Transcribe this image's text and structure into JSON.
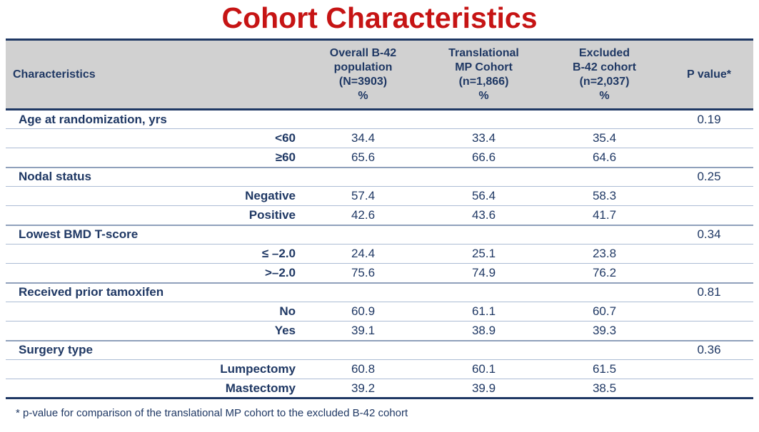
{
  "title": "Cohort Characteristics",
  "colors": {
    "title_red": "#c61414",
    "navy_text": "#1f3864",
    "header_gray": "#d1d1d1",
    "row_line_blue": "#acbcd4"
  },
  "table": {
    "headers": {
      "characteristics": "Characteristics",
      "overall": "Overall B-42\npopulation\n(N=3903)\n%",
      "translational": "Translational\nMP Cohort\n(n=1,866)\n%",
      "excluded": "Excluded\nB-42 cohort\n(n=2,037)\n%",
      "pvalue": "P value*"
    },
    "groups": [
      {
        "label": "Age at randomization, yrs",
        "p": "0.19",
        "rows": [
          {
            "label": "<60",
            "values": [
              "34.4",
              "33.4",
              "35.4"
            ]
          },
          {
            "label": "≥60",
            "values": [
              "65.6",
              "66.6",
              "64.6"
            ]
          }
        ]
      },
      {
        "label": "Nodal status",
        "p": "0.25",
        "rows": [
          {
            "label": "Negative",
            "values": [
              "57.4",
              "56.4",
              "58.3"
            ]
          },
          {
            "label": "Positive",
            "values": [
              "42.6",
              "43.6",
              "41.7"
            ]
          }
        ]
      },
      {
        "label": "Lowest BMD T-score",
        "p": "0.34",
        "rows": [
          {
            "label": "≤ –2.0",
            "values": [
              "24.4",
              "25.1",
              "23.8"
            ]
          },
          {
            "label": ">–2.0",
            "values": [
              "75.6",
              "74.9",
              "76.2"
            ]
          }
        ]
      },
      {
        "label": "Received prior tamoxifen",
        "p": "0.81",
        "rows": [
          {
            "label": "No",
            "values": [
              "60.9",
              "61.1",
              "60.7"
            ]
          },
          {
            "label": "Yes",
            "values": [
              "39.1",
              "38.9",
              "39.3"
            ]
          }
        ]
      },
      {
        "label": "Surgery type",
        "p": "0.36",
        "rows": [
          {
            "label": "Lumpectomy",
            "values": [
              "60.8",
              "60.1",
              "61.5"
            ]
          },
          {
            "label": "Mastectomy",
            "values": [
              "39.2",
              "39.9",
              "38.5"
            ]
          }
        ]
      }
    ]
  },
  "footnote": "* p-value for comparison of the translational MP cohort to the excluded B-42 cohort"
}
